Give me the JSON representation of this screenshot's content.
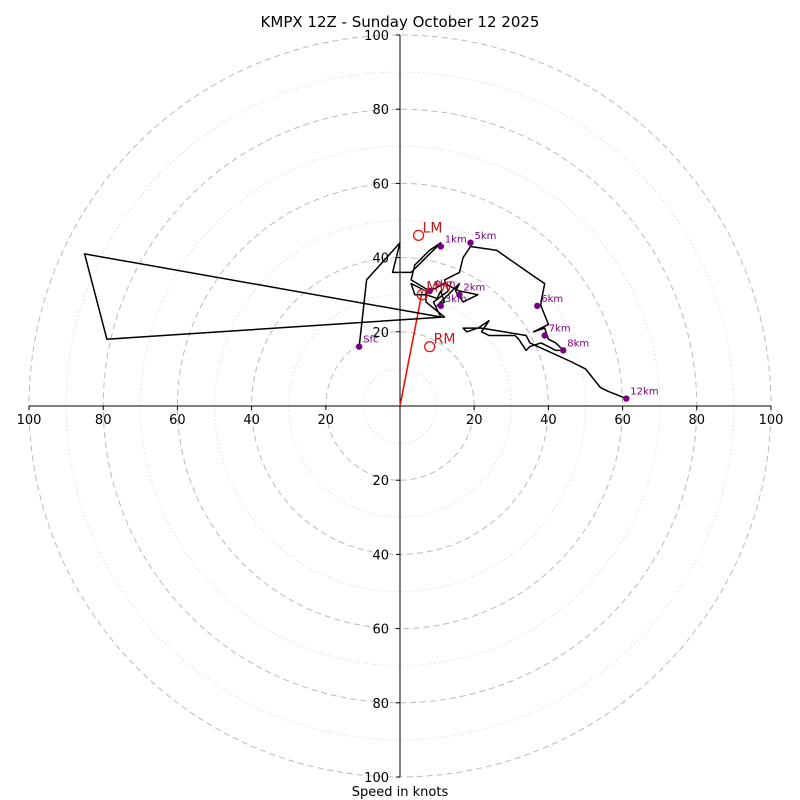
{
  "chart_data": {
    "type": "hodograph",
    "title": "KMPX 12Z - Sunday October 12 2025",
    "xlabel": "Speed in knots",
    "units": "knots",
    "ring_max": 100,
    "major_rings": [
      20,
      40,
      60,
      80,
      100
    ],
    "minor_rings": [
      10,
      30,
      50,
      70,
      90
    ],
    "tick_labels": {
      "left": [
        "100",
        "80",
        "60",
        "40",
        "20"
      ],
      "right": [
        "20",
        "40",
        "60",
        "80",
        "100"
      ],
      "up": [
        "20",
        "40",
        "60",
        "80",
        "100"
      ],
      "down": [
        "20",
        "40",
        "60",
        "80",
        "100"
      ]
    },
    "line_color": "#000000",
    "shear_color": "#e8140c",
    "height_marker_color": "#7a0083",
    "grid_color": "#bbbbbb",
    "hodograph_trace": [
      [
        -11,
        16
      ],
      [
        -9,
        34
      ],
      [
        0,
        44
      ],
      [
        -2,
        36
      ],
      [
        3,
        36
      ],
      [
        11,
        44
      ],
      [
        8,
        42
      ],
      [
        4,
        38
      ],
      [
        3,
        34
      ],
      [
        8,
        31
      ],
      [
        12,
        33
      ],
      [
        16,
        31
      ],
      [
        21,
        30
      ],
      [
        17,
        28
      ],
      [
        15,
        31
      ],
      [
        16,
        33
      ],
      [
        13,
        30
      ],
      [
        10,
        27
      ],
      [
        12,
        28
      ],
      [
        11,
        31
      ],
      [
        10,
        29
      ],
      [
        7,
        30
      ],
      [
        4,
        30
      ],
      [
        3,
        33
      ],
      [
        7,
        31
      ],
      [
        7,
        28
      ],
      [
        12,
        24
      ],
      [
        -79,
        18
      ],
      [
        -85,
        41
      ],
      [
        11,
        24
      ],
      [
        9,
        28
      ],
      [
        13,
        31
      ],
      [
        12,
        34
      ],
      [
        16,
        36
      ],
      [
        17,
        40
      ],
      [
        19,
        43
      ],
      [
        26,
        42
      ],
      [
        36,
        35
      ],
      [
        39,
        33
      ],
      [
        38,
        28
      ],
      [
        38,
        27
      ],
      [
        40,
        22
      ],
      [
        36,
        20
      ],
      [
        39,
        21
      ],
      [
        40,
        18
      ],
      [
        42,
        17
      ],
      [
        44,
        15
      ],
      [
        42,
        15
      ],
      [
        40,
        16
      ],
      [
        38,
        17
      ],
      [
        35,
        16
      ],
      [
        34,
        15
      ],
      [
        32,
        18
      ],
      [
        31,
        19
      ],
      [
        24,
        19
      ],
      [
        22,
        20
      ],
      [
        24,
        23
      ],
      [
        21,
        21
      ],
      [
        18,
        20
      ],
      [
        17,
        21
      ],
      [
        22,
        21
      ],
      [
        28,
        20
      ],
      [
        34,
        19
      ],
      [
        35,
        17
      ],
      [
        46,
        12
      ],
      [
        50,
        10
      ],
      [
        54,
        5
      ],
      [
        56,
        4
      ],
      [
        61,
        2
      ]
    ],
    "height_markers": [
      {
        "label": "Sfc",
        "u": -11,
        "v": 16
      },
      {
        "label": "1km",
        "u": 11,
        "v": 43
      },
      {
        "label": "2km",
        "u": 16,
        "v": 30
      },
      {
        "label": "3km",
        "u": 11,
        "v": 27
      },
      {
        "label": "4km",
        "u": 8,
        "v": 31
      },
      {
        "label": "5km",
        "u": 19,
        "v": 44
      },
      {
        "label": "6km",
        "u": 37,
        "v": 27
      },
      {
        "label": "7km",
        "u": 39,
        "v": 19
      },
      {
        "label": "8km",
        "u": 44,
        "v": 15
      },
      {
        "label": "12km",
        "u": 61,
        "v": 2
      }
    ],
    "storm_motion": [
      {
        "label": "LM",
        "u": 5,
        "v": 46
      },
      {
        "label": "MW",
        "u": 6,
        "v": 30
      },
      {
        "label": "RM",
        "u": 8,
        "v": 16
      }
    ],
    "shear_vector": {
      "u": 6,
      "v": 31
    }
  }
}
